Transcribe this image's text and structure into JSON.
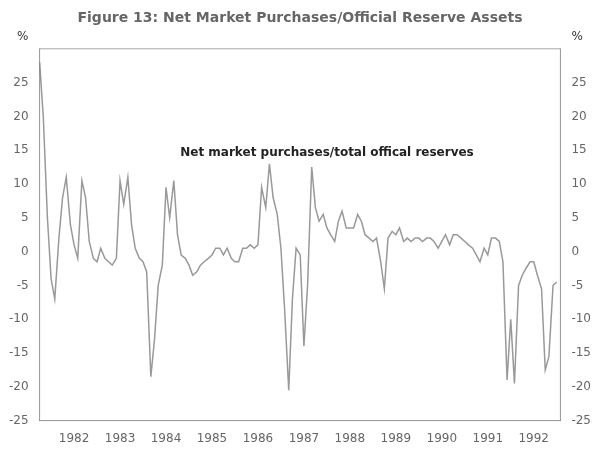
{
  "chart_data": {
    "type": "line",
    "title": "Figure 13: Net Market Purchases/Official Reserve Assets",
    "annotation": "Net market purchases/total offical reserves",
    "ylabel": "%",
    "y2label": "%",
    "color": "#999999",
    "grid": false,
    "x": [
      1981.25,
      1981.33,
      1981.42,
      1981.5,
      1981.58,
      1981.67,
      1981.75,
      1981.83,
      1981.92,
      1982.0,
      1982.08,
      1982.17,
      1982.25,
      1982.33,
      1982.42,
      1982.5,
      1982.58,
      1982.67,
      1982.75,
      1982.83,
      1982.92,
      1983.0,
      1983.08,
      1983.17,
      1983.25,
      1983.33,
      1983.42,
      1983.5,
      1983.58,
      1983.67,
      1983.75,
      1983.83,
      1983.92,
      1984.0,
      1984.08,
      1984.17,
      1984.25,
      1984.33,
      1984.42,
      1984.5,
      1984.58,
      1984.67,
      1984.75,
      1984.83,
      1984.92,
      1985.0,
      1985.08,
      1985.17,
      1985.25,
      1985.33,
      1985.42,
      1985.5,
      1985.58,
      1985.67,
      1985.75,
      1985.83,
      1985.92,
      1986.0,
      1986.08,
      1986.17,
      1986.25,
      1986.33,
      1986.42,
      1986.5,
      1986.58,
      1986.67,
      1986.75,
      1986.83,
      1986.92,
      1987.0,
      1987.08,
      1987.17,
      1987.25,
      1987.33,
      1987.42,
      1987.5,
      1987.58,
      1987.67,
      1987.75,
      1987.83,
      1987.92,
      1988.0,
      1988.08,
      1988.17,
      1988.25,
      1988.33,
      1988.42,
      1988.5,
      1988.58,
      1988.67,
      1988.75,
      1988.83,
      1988.92,
      1989.0,
      1989.08,
      1989.17,
      1989.25,
      1989.33,
      1989.42,
      1989.5,
      1989.58,
      1989.67,
      1989.75,
      1989.83,
      1989.92,
      1990.0,
      1990.08,
      1990.17,
      1990.25,
      1990.33,
      1990.42,
      1990.5,
      1990.58,
      1990.67,
      1990.75,
      1990.83,
      1990.92,
      1991.0,
      1991.08,
      1991.17,
      1991.25,
      1991.33,
      1991.42,
      1991.5,
      1991.58,
      1991.67,
      1991.75,
      1991.83,
      1991.92,
      1992.0,
      1992.08,
      1992.17,
      1992.25,
      1992.33,
      1992.42,
      1992.5
    ],
    "values": [
      28.0,
      20.0,
      5.0,
      -4.0,
      -7.0,
      2.0,
      8.0,
      11.0,
      4.0,
      1.0,
      -1.0,
      10.5,
      8.0,
      1.5,
      -1.0,
      -1.5,
      0.5,
      -1.0,
      -1.5,
      -2.0,
      -1.0,
      10.5,
      7.0,
      11.0,
      4.0,
      0.5,
      -1.0,
      -1.5,
      -3.0,
      -18.5,
      -13.0,
      -5.0,
      -2.0,
      9.5,
      5.0,
      10.5,
      2.5,
      -0.5,
      -1.0,
      -2.0,
      -3.5,
      -3.0,
      -2.0,
      -1.5,
      -1.0,
      -0.5,
      0.5,
      0.5,
      -0.5,
      0.5,
      -1.0,
      -1.5,
      -1.5,
      0.5,
      0.5,
      1.0,
      0.5,
      1.0,
      9.5,
      6.5,
      13.0,
      8.0,
      5.5,
      0.5,
      -8.5,
      -20.5,
      -7.0,
      0.5,
      -0.5,
      -14.0,
      -5.0,
      12.5,
      6.5,
      4.5,
      5.5,
      3.5,
      2.5,
      1.5,
      4.5,
      6.0,
      3.5,
      3.5,
      3.5,
      5.5,
      4.5,
      2.5,
      2.0,
      1.5,
      2.0,
      -1.5,
      -5.5,
      2.0,
      3.0,
      2.5,
      3.5,
      1.5,
      2.0,
      1.5,
      2.0,
      2.0,
      1.5,
      2.0,
      2.0,
      1.5,
      0.5,
      1.5,
      2.5,
      1.0,
      2.5,
      2.5,
      2.0,
      1.5,
      1.0,
      0.5,
      -0.5,
      -1.5,
      0.5,
      -0.5,
      2.0,
      2.0,
      1.5,
      -1.5,
      -19.0,
      -10.0,
      -19.5,
      -5.0,
      -3.5,
      -2.5,
      -1.5,
      -1.5,
      -3.5,
      -5.5,
      -17.5,
      -15.5,
      -5.0,
      -4.5
    ],
    "xlim": [
      1981.25,
      1992.58
    ],
    "xticks": [
      1982,
      1983,
      1984,
      1985,
      1986,
      1987,
      1988,
      1989,
      1990,
      1991,
      1992
    ],
    "ylim": [
      -25,
      30
    ],
    "yticks": [
      -25,
      -20,
      -15,
      -10,
      -5,
      0,
      5,
      10,
      15,
      20,
      25
    ],
    "y2lim": [
      -25,
      30
    ],
    "y2ticks": [
      -25,
      -20,
      -15,
      -10,
      -5,
      0,
      5,
      10,
      15,
      20,
      25
    ]
  }
}
